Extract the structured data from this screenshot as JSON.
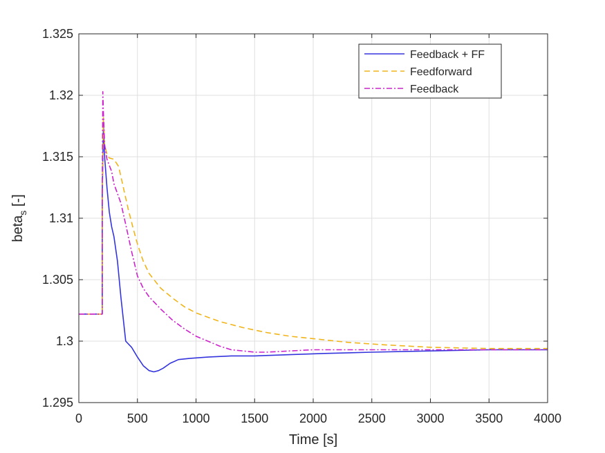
{
  "chart_data": {
    "type": "line",
    "xlabel": "Time [s]",
    "ylabel_main": "beta",
    "ylabel_sub": "s",
    "ylabel_unit": " [-]",
    "xlim": [
      0,
      4000
    ],
    "ylim": [
      1.295,
      1.325
    ],
    "xticks": [
      0,
      500,
      1000,
      1500,
      2000,
      2500,
      3000,
      3500,
      4000
    ],
    "xtick_labels": [
      "0",
      "500",
      "1000",
      "1500",
      "2000",
      "2500",
      "3000",
      "3500",
      "4000"
    ],
    "yticks": [
      1.295,
      1.3,
      1.305,
      1.31,
      1.315,
      1.32,
      1.325
    ],
    "ytick_labels": [
      "1.295",
      "1.3",
      "1.305",
      "1.31",
      "1.315",
      "1.32",
      "1.325"
    ],
    "grid": true,
    "legend_position": "top-right",
    "series": [
      {
        "name": "Feedback + FF",
        "color": "#3333dd",
        "dash": "solid",
        "x": [
          0,
          200,
          200,
          210,
          220,
          240,
          260,
          280,
          300,
          330,
          360,
          400,
          450,
          500,
          550,
          600,
          640,
          680,
          720,
          780,
          850,
          950,
          1100,
          1300,
          1500,
          1800,
          2100,
          2500,
          3000,
          3500,
          4000
        ],
        "y": [
          1.3022,
          1.3022,
          1.312,
          1.3176,
          1.315,
          1.3125,
          1.3105,
          1.3093,
          1.3085,
          1.3065,
          1.3035,
          1.3,
          1.2995,
          1.2987,
          1.298,
          1.2976,
          1.2975,
          1.2976,
          1.2978,
          1.2982,
          1.2985,
          1.2986,
          1.2987,
          1.2988,
          1.2988,
          1.2989,
          1.299,
          1.2991,
          1.2992,
          1.2993,
          1.2993
        ]
      },
      {
        "name": "Feedforward",
        "color": "#f0b418",
        "dash": "8,5",
        "x": [
          0,
          200,
          200,
          210,
          220,
          240,
          260,
          300,
          340,
          380,
          420,
          460,
          500,
          550,
          600,
          700,
          800,
          900,
          1000,
          1200,
          1400,
          1600,
          1800,
          2000,
          2300,
          2600,
          3000,
          3500,
          4000
        ],
        "y": [
          1.3022,
          1.3022,
          1.312,
          1.3182,
          1.316,
          1.3152,
          1.3149,
          1.3148,
          1.3142,
          1.3125,
          1.3108,
          1.3093,
          1.3079,
          1.3065,
          1.3055,
          1.3043,
          1.3035,
          1.3028,
          1.3023,
          1.3016,
          1.3011,
          1.3007,
          1.3004,
          1.3002,
          1.2999,
          1.2997,
          1.2995,
          1.2994,
          1.2994
        ]
      },
      {
        "name": "Feedback",
        "color": "#cc22cc",
        "dash": "8,3,2,3",
        "x": [
          0,
          200,
          200,
          205,
          210,
          220,
          240,
          260,
          280,
          300,
          330,
          360,
          400,
          450,
          500,
          550,
          600,
          650,
          700,
          800,
          900,
          1000,
          1100,
          1200,
          1300,
          1400,
          1500,
          1600,
          1800,
          2000,
          2300,
          2600,
          3000,
          3500,
          4000
        ],
        "y": [
          1.3022,
          1.3022,
          1.312,
          1.3203,
          1.3185,
          1.316,
          1.3148,
          1.3143,
          1.3138,
          1.3128,
          1.312,
          1.3112,
          1.3095,
          1.3073,
          1.3053,
          1.3043,
          1.3036,
          1.3031,
          1.3026,
          1.3017,
          1.301,
          1.3004,
          1.3,
          1.2996,
          1.2993,
          1.2992,
          1.2991,
          1.2991,
          1.2992,
          1.2993,
          1.2993,
          1.2993,
          1.2993,
          1.2993,
          1.2993
        ]
      }
    ]
  }
}
